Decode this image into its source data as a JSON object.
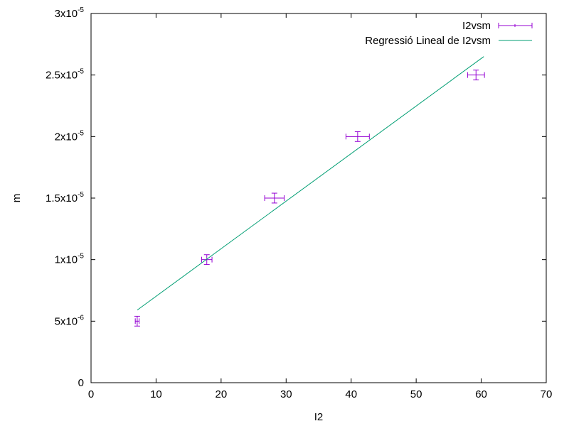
{
  "chart_data": {
    "type": "scatter",
    "xlabel": "I2",
    "ylabel": "m",
    "xlim": [
      0,
      70
    ],
    "ylim": [
      0,
      3e-05
    ],
    "x_ticks": [
      0,
      10,
      20,
      30,
      40,
      50,
      60,
      70
    ],
    "y_ticks": [
      {
        "value": 0,
        "mantissa": "0",
        "exponent": ""
      },
      {
        "value": 5e-06,
        "mantissa": "5x10",
        "exponent": "-6"
      },
      {
        "value": 1e-05,
        "mantissa": "1x10",
        "exponent": "-5"
      },
      {
        "value": 1.5e-05,
        "mantissa": "1.5x10",
        "exponent": "-5"
      },
      {
        "value": 2e-05,
        "mantissa": "2x10",
        "exponent": "-5"
      },
      {
        "value": 2.5e-05,
        "mantissa": "2.5x10",
        "exponent": "-5"
      },
      {
        "value": 3e-05,
        "mantissa": "3x10",
        "exponent": "-5"
      }
    ],
    "legend_position": "top-right",
    "grid": false,
    "series": [
      {
        "name": "I2vsm",
        "kind": "errorbars",
        "color": "#9400d3",
        "points": [
          {
            "x": 7.1,
            "y": 5e-06,
            "xerr": 0.3,
            "yerr": 4e-07
          },
          {
            "x": 17.8,
            "y": 1e-05,
            "xerr": 0.8,
            "yerr": 4e-07
          },
          {
            "x": 28.2,
            "y": 1.5e-05,
            "xerr": 1.5,
            "yerr": 4e-07
          },
          {
            "x": 41.0,
            "y": 2e-05,
            "xerr": 1.8,
            "yerr": 4e-07
          },
          {
            "x": 59.2,
            "y": 2.5e-05,
            "xerr": 1.3,
            "yerr": 4e-07
          }
        ]
      },
      {
        "name": "Regressió Lineal de I2vsm",
        "kind": "line",
        "color": "#009e73",
        "points": [
          {
            "x": 7.1,
            "y": 5.9e-06
          },
          {
            "x": 60.4,
            "y": 2.65e-05
          }
        ]
      }
    ]
  }
}
